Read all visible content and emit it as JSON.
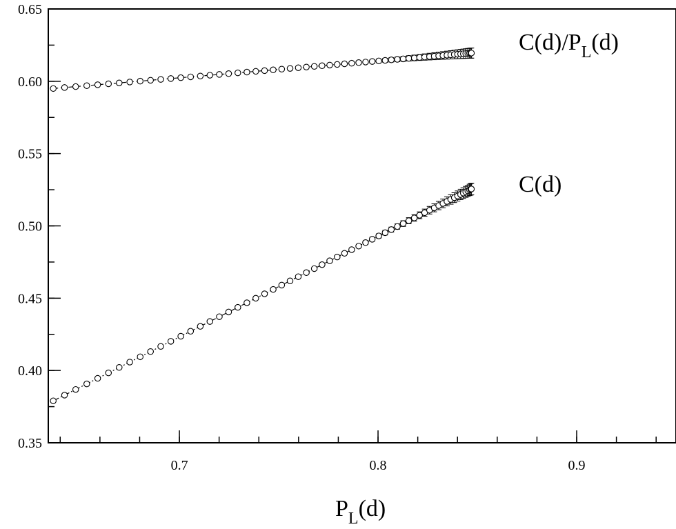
{
  "chart_data": {
    "type": "scatter",
    "title": "",
    "xlabel": {
      "main": "P",
      "sub": "L",
      "rest": "(d)"
    },
    "ylabel": "",
    "xlim": [
      0.634,
      0.95
    ],
    "ylim": [
      0.35,
      0.65
    ],
    "x_ticks": [
      0.7,
      0.8,
      0.9
    ],
    "x_tick_labels": [
      "0.7",
      "0.8",
      "0.9"
    ],
    "x_minor_step": 0.02,
    "y_ticks": [
      0.35,
      0.4,
      0.45,
      0.5,
      0.55,
      0.6,
      0.65
    ],
    "y_tick_labels": [
      "0.35",
      "0.40",
      "0.45",
      "0.50",
      "0.55",
      "0.60",
      "0.65"
    ],
    "y_minor_step": 0.025,
    "grid": false,
    "legend": "none",
    "series": [
      {
        "name": {
          "main": "C(d)/P",
          "sub": "L",
          "rest": "(d)"
        },
        "marker": "open-circle",
        "line": "dashed",
        "x_start": 0.6365,
        "x_end": 0.847,
        "y_start": 0.595,
        "y_end": 0.6195,
        "point_count": 60,
        "error_bar_max": 0.0035
      },
      {
        "name": {
          "main": "C(d)",
          "sub": "",
          "rest": ""
        },
        "marker": "open-circle",
        "line": "dash-dot",
        "x_start": 0.6365,
        "x_end": 0.847,
        "y_start": 0.379,
        "y_end": 0.5255,
        "point_count": 60,
        "error_bar_max": 0.004
      }
    ],
    "color": "#000000"
  }
}
